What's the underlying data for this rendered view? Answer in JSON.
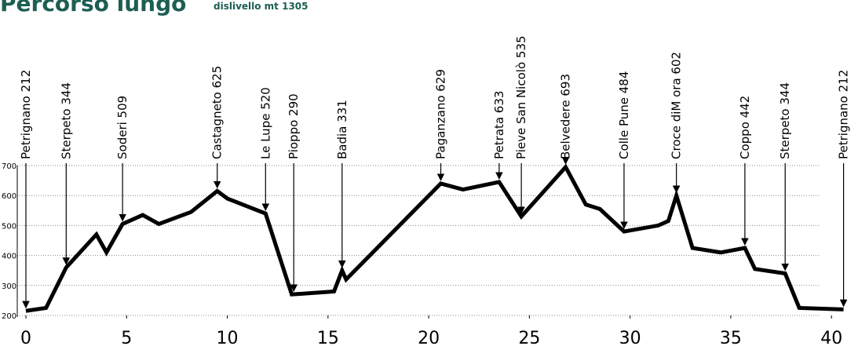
{
  "chart_data": {
    "type": "line",
    "title": "Percorso lungo",
    "subtitle": "dislivello mt 1305",
    "x": [
      0,
      1.0,
      2.0,
      3.5,
      4.0,
      4.8,
      5.8,
      6.6,
      8.2,
      9.5,
      10.0,
      11.9,
      13.2,
      15.3,
      15.7,
      15.9,
      20.6,
      21.7,
      23.5,
      24.6,
      26.8,
      27.8,
      28.5,
      29.7,
      31.4,
      31.9,
      32.3,
      33.1,
      34.5,
      35.7,
      36.2,
      37.7,
      38.4,
      40.6
    ],
    "y": [
      215,
      225,
      360,
      470,
      410,
      505,
      535,
      505,
      545,
      615,
      590,
      540,
      270,
      280,
      350,
      320,
      640,
      620,
      645,
      530,
      695,
      570,
      555,
      480,
      500,
      515,
      600,
      425,
      410,
      425,
      355,
      340,
      225,
      220
    ],
    "color": "#000000",
    "xlim": [
      0,
      41.2
    ],
    "ylim": [
      200,
      700
    ],
    "xticks": [
      0,
      5,
      10,
      15,
      20,
      25,
      30,
      35,
      40
    ],
    "yticks": [
      200,
      300,
      400,
      500,
      600,
      700
    ],
    "grid": true,
    "annotations": [
      {
        "text": "Petrignano 212",
        "x": 0
      },
      {
        "text": "Sterpeto 344",
        "x": 2.0
      },
      {
        "text": "Soderi 509",
        "x": 4.8
      },
      {
        "text": "Castagneto 625",
        "x": 9.5
      },
      {
        "text": "Le Lupe 520",
        "x": 11.9
      },
      {
        "text": "Pioppo 290",
        "x": 13.3
      },
      {
        "text": "Badia 331",
        "x": 15.7
      },
      {
        "text": "Paganzano 629",
        "x": 20.6
      },
      {
        "text": "Petrata 633",
        "x": 23.5
      },
      {
        "text": "Pieve San Nicolò 535",
        "x": 24.6
      },
      {
        "text": "Belvedere 693",
        "x": 26.8
      },
      {
        "text": "Colle Pune 484",
        "x": 29.7
      },
      {
        "text": "Croce diM ora 602",
        "x": 32.3
      },
      {
        "text": "Coppo 442",
        "x": 35.7
      },
      {
        "text": "Sterpeto 344",
        "x": 37.7
      },
      {
        "text": "Petrignano 212",
        "x": 40.6
      }
    ]
  }
}
